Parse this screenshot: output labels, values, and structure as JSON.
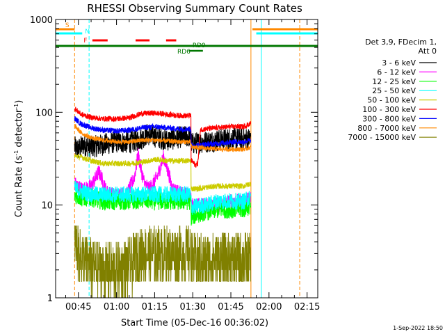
{
  "chart_data": {
    "type": "line",
    "title": "RHESSI Observing Summary Count Rates",
    "xlabel": "Start Time (05-Dec-16 00:36:02)",
    "ylabel": "Count Rate (s⁻¹ detector⁻¹)",
    "ylabel_main": "Count Rate (s",
    "ylabel_sup1": "-1",
    "ylabel_mid": " detector",
    "ylabel_sup2": "-1",
    "ylabel_end": ")",
    "y_scale": "log",
    "ylim": [
      1,
      1000
    ],
    "xlim_minutes": [
      36.03,
      139.2
    ],
    "x_ticks": [
      {
        "label": "00:45",
        "minutes": 45
      },
      {
        "label": "01:00",
        "minutes": 60
      },
      {
        "label": "01:15",
        "minutes": 75
      },
      {
        "label": "01:30",
        "minutes": 90
      },
      {
        "label": "01:45",
        "minutes": 105
      },
      {
        "label": "02:00",
        "minutes": 120
      },
      {
        "label": "02:15",
        "minutes": 135
      }
    ],
    "y_ticks": [
      {
        "label": "1",
        "value": 1
      },
      {
        "label": "10",
        "value": 10
      },
      {
        "label": "100",
        "value": 100
      },
      {
        "label": "1000",
        "value": 1000
      }
    ],
    "legend_header": [
      "Det 3,9, FDecim 1,",
      "Att 0"
    ],
    "legend_placement": "right",
    "series": [
      {
        "name": "3 - 6 keV",
        "color": "#000000",
        "noise": 0.12,
        "points": [
          [
            43.5,
            42
          ],
          [
            45,
            40
          ],
          [
            47,
            45
          ],
          [
            50,
            42
          ],
          [
            55,
            45
          ],
          [
            60,
            48
          ],
          [
            65,
            47
          ],
          [
            70,
            52
          ],
          [
            72,
            58
          ],
          [
            75,
            55
          ],
          [
            80,
            50
          ],
          [
            85,
            54
          ],
          [
            89,
            55
          ],
          [
            89.6,
            46
          ],
          [
            95,
            48
          ],
          [
            100,
            50
          ],
          [
            105,
            52
          ],
          [
            110,
            52
          ],
          [
            112.8,
            52
          ]
        ]
      },
      {
        "name": "6 - 12 keV",
        "color": "#ff00ff",
        "noise": 0.08,
        "points": [
          [
            43.5,
            17
          ],
          [
            46,
            15
          ],
          [
            48,
            15
          ],
          [
            50,
            16
          ],
          [
            52,
            20
          ],
          [
            53,
            23
          ],
          [
            54,
            20
          ],
          [
            56,
            14
          ],
          [
            58,
            13
          ],
          [
            62,
            13
          ],
          [
            64,
            13
          ],
          [
            67,
            20
          ],
          [
            68.5,
            35
          ],
          [
            70,
            22
          ],
          [
            71,
            17
          ],
          [
            73,
            15
          ],
          [
            76,
            20
          ],
          [
            78.5,
            33
          ],
          [
            80.5,
            22
          ],
          [
            82,
            15
          ],
          [
            86,
            13
          ],
          [
            89,
            13
          ],
          [
            89.6,
            10
          ],
          [
            93,
            10
          ],
          [
            97,
            10
          ],
          [
            100,
            10
          ],
          [
            105,
            11
          ],
          [
            110,
            11
          ],
          [
            112.8,
            12
          ]
        ]
      },
      {
        "name": "12 - 25 keV",
        "color": "#00ff00",
        "noise": 0.1,
        "points": [
          [
            43.5,
            13
          ],
          [
            46,
            12
          ],
          [
            50,
            12
          ],
          [
            55,
            11
          ],
          [
            60,
            11
          ],
          [
            65,
            11
          ],
          [
            70,
            11.5
          ],
          [
            75,
            11
          ],
          [
            80,
            11
          ],
          [
            85,
            11
          ],
          [
            89,
            11
          ],
          [
            89.6,
            7.5
          ],
          [
            92,
            8
          ],
          [
            95,
            8.5
          ],
          [
            100,
            9
          ],
          [
            105,
            9
          ],
          [
            110,
            9
          ],
          [
            112.8,
            10
          ]
        ]
      },
      {
        "name": "25 - 50 keV",
        "color": "#00ffff",
        "noise": 0.09,
        "points": [
          [
            43.5,
            15
          ],
          [
            46,
            14
          ],
          [
            50,
            13
          ],
          [
            55,
            13
          ],
          [
            60,
            13
          ],
          [
            65,
            13
          ],
          [
            70,
            13
          ],
          [
            75,
            13
          ],
          [
            80,
            13
          ],
          [
            85,
            13
          ],
          [
            89,
            13
          ],
          [
            89.6,
            9.5
          ],
          [
            95,
            10
          ],
          [
            100,
            11
          ],
          [
            105,
            11
          ],
          [
            110,
            11
          ],
          [
            112.8,
            12
          ]
        ]
      },
      {
        "name": "50 - 100 keV",
        "color": "#cccc00",
        "noise": 0.03,
        "points": [
          [
            43.5,
            34
          ],
          [
            46,
            33
          ],
          [
            50,
            30
          ],
          [
            55,
            28
          ],
          [
            60,
            28
          ],
          [
            65,
            28
          ],
          [
            70,
            29
          ],
          [
            75,
            31
          ],
          [
            80,
            30
          ],
          [
            85,
            30
          ],
          [
            89,
            30
          ],
          [
            89.6,
            15
          ],
          [
            92,
            15
          ],
          [
            95,
            15.5
          ],
          [
            100,
            16
          ],
          [
            105,
            16
          ],
          [
            110,
            16
          ],
          [
            112.8,
            17
          ]
        ]
      },
      {
        "name": "100 - 300 keV",
        "color": "#ff0000",
        "noise": 0.03,
        "points": [
          [
            43.5,
            110
          ],
          [
            46,
            95
          ],
          [
            50,
            88
          ],
          [
            55,
            85
          ],
          [
            60,
            85
          ],
          [
            65,
            87
          ],
          [
            70,
            97
          ],
          [
            75,
            98
          ],
          [
            80,
            95
          ],
          [
            85,
            92
          ],
          [
            89,
            92
          ],
          [
            89.6,
            30
          ],
          [
            91,
            27
          ],
          [
            92,
            28
          ],
          [
            93,
            65
          ],
          [
            95,
            66
          ],
          [
            100,
            68
          ],
          [
            105,
            70
          ],
          [
            110,
            70
          ],
          [
            112.8,
            76
          ]
        ]
      },
      {
        "name": "300 - 800 keV",
        "color": "#0000ff",
        "noise": 0.03,
        "points": [
          [
            43.5,
            86
          ],
          [
            46,
            75
          ],
          [
            50,
            68
          ],
          [
            55,
            64
          ],
          [
            60,
            63
          ],
          [
            65,
            64
          ],
          [
            70,
            68
          ],
          [
            75,
            70
          ],
          [
            80,
            68
          ],
          [
            85,
            66
          ],
          [
            89,
            66
          ],
          [
            89.6,
            44
          ],
          [
            92,
            44
          ],
          [
            95,
            45
          ],
          [
            100,
            46
          ],
          [
            105,
            48
          ],
          [
            110,
            48
          ],
          [
            112.8,
            50
          ]
        ]
      },
      {
        "name": "800 - 7000 keV",
        "color": "#ff8800",
        "noise": 0.025,
        "points": [
          [
            43.5,
            72
          ],
          [
            46,
            60
          ],
          [
            50,
            53
          ],
          [
            55,
            50
          ],
          [
            60,
            48
          ],
          [
            65,
            48
          ],
          [
            70,
            50
          ],
          [
            75,
            50
          ],
          [
            80,
            49
          ],
          [
            85,
            48
          ],
          [
            89,
            48
          ],
          [
            89.6,
            42
          ],
          [
            95,
            41
          ],
          [
            100,
            40
          ],
          [
            105,
            40
          ],
          [
            110,
            40
          ],
          [
            112.8,
            42
          ]
        ]
      },
      {
        "name": "7000 - 15000 keV",
        "color": "#808000",
        "noise": 0.3,
        "points": [
          [
            43.5,
            4
          ],
          [
            45,
            3
          ],
          [
            50,
            2.2
          ],
          [
            55,
            2
          ],
          [
            60,
            2
          ],
          [
            65,
            2.2
          ],
          [
            70,
            3
          ],
          [
            75,
            3
          ],
          [
            80,
            3
          ],
          [
            85,
            3
          ],
          [
            89,
            3
          ],
          [
            90,
            2.5
          ],
          [
            95,
            2.5
          ],
          [
            100,
            2.6
          ],
          [
            105,
            2.6
          ],
          [
            110,
            2.6
          ],
          [
            112.8,
            2.6
          ]
        ]
      }
    ],
    "annotations": [
      {
        "label": "S",
        "color": "#ff8800"
      },
      {
        "label": "N",
        "color": "#00ffff"
      },
      {
        "label": "F",
        "color": "#ff0000"
      },
      {
        "label": "RD9",
        "color": "#007700"
      },
      {
        "label": "RD6",
        "color": "#007700"
      }
    ],
    "segments": {
      "S": [
        [
          36.03,
          43.5
        ],
        [
          113.5,
          139.2
        ]
      ],
      "N": [
        [
          36.03,
          46.5
        ],
        [
          115,
          139.2
        ]
      ],
      "F": [
        [
          50.5,
          56.5
        ],
        [
          67.5,
          73
        ],
        [
          79.5,
          83.5
        ]
      ],
      "RD9": [
        [
          36.03,
          139.2
        ]
      ],
      "RD6": [
        [
          88.5,
          94
        ]
      ]
    },
    "vlines": [
      {
        "minutes": 43.5,
        "color": "#ff8800",
        "style": "dashed"
      },
      {
        "minutes": 49.2,
        "color": "#00ffff",
        "style": "dashed"
      },
      {
        "minutes": 112.9,
        "color": "#ff8800",
        "style": "solid"
      },
      {
        "minutes": 117.0,
        "color": "#00ffff",
        "style": "solid"
      },
      {
        "minutes": 132.1,
        "color": "#ff8800",
        "style": "dashed"
      }
    ],
    "footer_date": "1-Sep-2022 18:50"
  }
}
